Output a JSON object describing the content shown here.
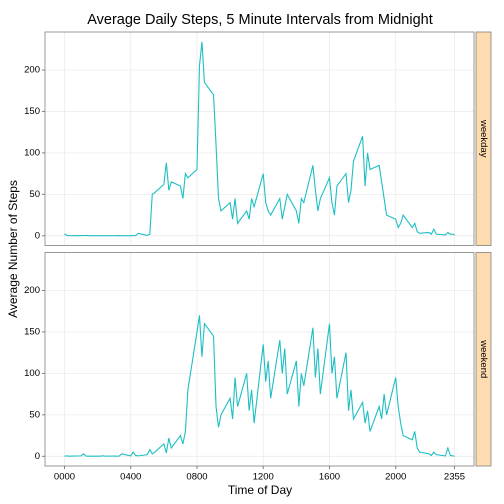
{
  "chart_data": {
    "type": "line",
    "title": "Average Daily Steps, 5 Minute Intervals from Midnight",
    "x_label": "Time of Day",
    "y_label": "Average Number of Steps",
    "facet": "rows",
    "grid": true,
    "x": [
      0,
      15,
      30,
      45,
      100,
      115,
      130,
      145,
      200,
      215,
      230,
      245,
      300,
      315,
      330,
      345,
      400,
      415,
      430,
      445,
      500,
      515,
      530,
      545,
      600,
      615,
      630,
      645,
      700,
      715,
      730,
      745,
      800,
      815,
      830,
      845,
      900,
      915,
      930,
      945,
      1000,
      1015,
      1030,
      1045,
      1100,
      1115,
      1130,
      1145,
      1200,
      1215,
      1230,
      1245,
      1300,
      1315,
      1330,
      1345,
      1400,
      1415,
      1430,
      1445,
      1500,
      1515,
      1530,
      1545,
      1600,
      1615,
      1630,
      1645,
      1700,
      1715,
      1730,
      1745,
      1800,
      1815,
      1830,
      1845,
      1900,
      1915,
      1930,
      1945,
      2000,
      2015,
      2030,
      2045,
      2100,
      2115,
      2130,
      2145,
      2200,
      2215,
      2230,
      2245,
      2300,
      2315,
      2330,
      2345,
      2355
    ],
    "series": [
      {
        "name": "weekday",
        "color": "#1dbfc3",
        "values": [
          2.3,
          0.4,
          0.2,
          0.1,
          0.3,
          0.2,
          0.5,
          0.1,
          0.1,
          0.1,
          0.2,
          0.1,
          0.2,
          0.1,
          0.3,
          0.1,
          0.1,
          0.3,
          0.2,
          3,
          0.4,
          2,
          50,
          52,
          62,
          88,
          55,
          65,
          60,
          45,
          75,
          70,
          80,
          205,
          234,
          185,
          170,
          110,
          45,
          30,
          40,
          20,
          45,
          15,
          30,
          20,
          45,
          35,
          75,
          40,
          30,
          25,
          45,
          20,
          35,
          50,
          30,
          15,
          45,
          40,
          85,
          55,
          30,
          45,
          70,
          40,
          25,
          60,
          75,
          40,
          55,
          90,
          120,
          60,
          100,
          80,
          85,
          65,
          45,
          25,
          20,
          10,
          15,
          25,
          10,
          15,
          5,
          3,
          4,
          2,
          8,
          2,
          1,
          4,
          2,
          2,
          1
        ]
      },
      {
        "name": "weekend",
        "color": "#1dbfc3",
        "values": [
          0.2,
          0.5,
          0.1,
          0.3,
          0.5,
          3,
          0.2,
          0.1,
          0.2,
          0.1,
          0.6,
          0.2,
          0.3,
          0.1,
          0.2,
          3,
          0.5,
          5,
          1,
          0.5,
          2,
          8,
          3,
          5,
          15,
          4,
          22,
          10,
          25,
          15,
          30,
          80,
          150,
          170,
          120,
          160,
          145,
          60,
          35,
          50,
          70,
          45,
          95,
          60,
          100,
          55,
          80,
          40,
          135,
          90,
          115,
          70,
          140,
          100,
          130,
          75,
          115,
          60,
          100,
          85,
          155,
          95,
          130,
          75,
          160,
          100,
          120,
          70,
          125,
          55,
          80,
          45,
          65,
          40,
          55,
          30,
          60,
          45,
          75,
          50,
          95,
          60,
          40,
          25,
          20,
          30,
          10,
          5,
          3,
          1,
          5,
          2,
          0.5,
          10,
          1,
          0.5,
          0.1
        ]
      }
    ],
    "xlim": [
      -117.75,
      2472.75
    ],
    "xticks": [
      {
        "value": 0,
        "label": "0000"
      },
      {
        "value": 400,
        "label": "0400"
      },
      {
        "value": 800,
        "label": "0800"
      },
      1200,
      1600,
      2000,
      2355
    ],
    "ylim": [
      -11.7,
      245.8
    ],
    "yticks": [
      0,
      50,
      100,
      150,
      200
    ]
  }
}
